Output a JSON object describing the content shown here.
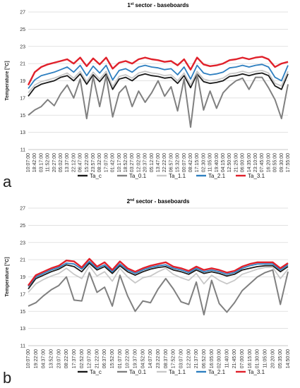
{
  "chart_data": [
    {
      "type": "line",
      "panel_letter": "a",
      "title_prefix": "1",
      "title_sup": "st",
      "title_rest": " sector - baseboards",
      "xlabel": "",
      "ylabel": "Temperature [°C]",
      "ylim": [
        11,
        27
      ],
      "yticks": [
        11,
        13,
        15,
        17,
        19,
        21,
        23,
        25,
        27
      ],
      "grid": true,
      "legend_position": "bottom",
      "x": [
        "10:07:00",
        "18:42:00",
        "03:17:00",
        "11:52:00",
        "20:27:00",
        "05:02:00",
        "13:37:00",
        "22:12:00",
        "06:47:00",
        "15:22:00",
        "23:57:00",
        "08:32:00",
        "17:07:00",
        "01:42:00",
        "10:17:00",
        "18:52:00",
        "03:27:00",
        "12:02:00",
        "20:37:00",
        "05:12:00",
        "13:47:00",
        "22:22:00",
        "06:57:00",
        "15:32:00",
        "00:07:00",
        "08:42:00",
        "17:15:00",
        "02:30:00",
        "11:05:00",
        "19:40:00",
        "04:15:00",
        "12:50:00",
        "21:25:00",
        "06:00:00",
        "14:35:00",
        "23:10:00",
        "07:45:00",
        "16:20:00",
        "00:55:00",
        "09:30:00",
        "17:55:00"
      ],
      "series": [
        {
          "name": "Ta_c",
          "color": "#1a1a1a",
          "values": [
            17.2,
            18.2,
            18.6,
            18.8,
            19.0,
            19.4,
            19.6,
            19.0,
            19.8,
            18.6,
            19.7,
            18.9,
            19.8,
            18.0,
            19.2,
            19.4,
            19.0,
            19.6,
            19.8,
            19.6,
            19.5,
            19.3,
            19.4,
            18.7,
            19.6,
            18.2,
            19.8,
            18.9,
            18.7,
            18.8,
            19.0,
            19.5,
            19.6,
            19.8,
            19.6,
            19.8,
            19.9,
            19.6,
            18.4,
            18.0,
            19.8
          ]
        },
        {
          "name": "Ta_0.1",
          "color": "#808080",
          "values": [
            15.0,
            15.6,
            16.0,
            16.8,
            16.1,
            17.5,
            18.5,
            17.0,
            19.2,
            14.6,
            19.5,
            16.0,
            19.6,
            14.8,
            17.6,
            18.4,
            16.0,
            17.8,
            16.5,
            17.6,
            19.0,
            17.2,
            18.3,
            15.5,
            19.2,
            13.6,
            19.8,
            15.6,
            17.8,
            15.8,
            17.6,
            18.4,
            19.0,
            19.3,
            18.0,
            19.4,
            19.4,
            18.2,
            16.8,
            14.6,
            18.6
          ]
        },
        {
          "name": "Ta_1.1",
          "color": "#c8c8c8",
          "values": [
            17.6,
            18.5,
            18.9,
            19.1,
            19.3,
            19.6,
            19.9,
            19.3,
            20.1,
            18.9,
            20.0,
            19.2,
            20.1,
            18.3,
            19.5,
            19.7,
            19.3,
            19.9,
            20.1,
            19.9,
            19.8,
            19.6,
            19.7,
            19.0,
            19.9,
            18.5,
            20.1,
            19.2,
            19.0,
            19.1,
            19.3,
            19.8,
            19.9,
            20.1,
            19.9,
            20.1,
            20.2,
            19.9,
            18.7,
            18.4,
            20.1
          ]
        },
        {
          "name": "Ta_2.1",
          "color": "#2e7fc0",
          "values": [
            18.1,
            19.1,
            19.6,
            19.8,
            20.0,
            20.3,
            20.6,
            20.0,
            20.8,
            19.6,
            20.7,
            19.9,
            20.8,
            19.1,
            20.2,
            20.4,
            20.0,
            20.6,
            20.8,
            20.6,
            20.5,
            20.3,
            20.4,
            19.7,
            20.6,
            19.2,
            20.8,
            19.9,
            19.7,
            19.8,
            20.0,
            20.5,
            20.6,
            20.8,
            20.6,
            20.8,
            20.9,
            20.6,
            19.4,
            19.0,
            20.8
          ]
        },
        {
          "name": "Ta_3.1",
          "color": "#e0202a",
          "values": [
            18.5,
            20.0,
            20.6,
            20.9,
            21.1,
            21.3,
            21.5,
            21.0,
            21.7,
            20.7,
            21.6,
            20.9,
            21.7,
            20.4,
            21.1,
            21.3,
            21.0,
            21.5,
            21.7,
            21.5,
            21.4,
            21.2,
            21.3,
            20.8,
            21.5,
            20.3,
            21.7,
            20.9,
            20.7,
            20.8,
            21.0,
            21.4,
            21.5,
            21.7,
            21.5,
            21.7,
            21.8,
            21.5,
            20.6,
            21.0,
            21.2
          ]
        }
      ]
    },
    {
      "type": "line",
      "panel_letter": "b",
      "title_prefix": "2",
      "title_sup": "nd",
      "title_rest": " sector - baseboards",
      "xlabel": "",
      "ylabel": "Temperature [°C]",
      "ylim": [
        11,
        27
      ],
      "yticks": [
        11,
        13,
        15,
        17,
        19,
        21,
        23,
        25,
        27
      ],
      "grid": true,
      "legend_position": "bottom",
      "x": [
        "10:07:00",
        "19:22:00",
        "04:37:00",
        "13:52:00",
        "23:07:00",
        "08:22:00",
        "17:37:00",
        "02:52:00",
        "12:07:00",
        "21:22:00",
        "06:37:00",
        "15:52:00",
        "01:07:00",
        "10:22:00",
        "19:37:00",
        "04:52:00",
        "14:07:00",
        "23:22:00",
        "08:37:00",
        "17:52:00",
        "03:07:00",
        "12:22:00",
        "21:37:00",
        "06:52:00",
        "16:05:00",
        "02:00:00",
        "11:40:00",
        "21:45:00",
        "07:00:00",
        "16:15:00",
        "01:30:00",
        "11:05:00",
        "20:20:00",
        "05:35:00",
        "14:50:00"
      ],
      "series": [
        {
          "name": "Ta_c",
          "color": "#1a1a1a",
          "values": [
            17.6,
            18.8,
            19.2,
            19.6,
            19.9,
            20.4,
            20.2,
            19.6,
            20.6,
            19.8,
            20.2,
            19.4,
            20.3,
            19.6,
            19.2,
            19.6,
            19.9,
            20.1,
            20.2,
            19.8,
            19.6,
            19.3,
            19.8,
            19.4,
            19.6,
            19.4,
            19.1,
            19.3,
            19.8,
            20.0,
            20.2,
            20.3,
            20.3,
            19.6,
            20.2
          ]
        },
        {
          "name": "Ta_0.1",
          "color": "#808080",
          "values": [
            15.6,
            16.0,
            16.8,
            17.5,
            18.0,
            19.0,
            16.3,
            16.2,
            19.5,
            17.2,
            17.8,
            15.6,
            19.2,
            16.8,
            15.0,
            16.2,
            16.0,
            17.6,
            18.8,
            17.6,
            16.1,
            15.8,
            18.4,
            14.6,
            18.6,
            15.9,
            14.9,
            16.0,
            17.4,
            18.2,
            19.0,
            19.5,
            19.8,
            15.8,
            19.6
          ]
        },
        {
          "name": "Ta_1.1",
          "color": "#c8c8c8",
          "values": [
            17.2,
            18.2,
            18.7,
            19.1,
            19.4,
            20.0,
            19.3,
            18.8,
            20.3,
            19.1,
            19.6,
            18.5,
            20.0,
            19.0,
            18.3,
            18.9,
            19.1,
            19.6,
            20.0,
            19.3,
            18.9,
            18.6,
            19.4,
            18.2,
            19.2,
            18.6,
            18.2,
            18.6,
            19.3,
            19.6,
            19.9,
            20.1,
            20.1,
            18.8,
            19.9
          ]
        },
        {
          "name": "Ta_2.1",
          "color": "#2e7fc0",
          "values": [
            17.9,
            19.0,
            19.4,
            19.8,
            20.1,
            20.6,
            20.5,
            19.9,
            20.8,
            20.0,
            20.4,
            19.6,
            20.5,
            19.8,
            19.4,
            19.8,
            20.1,
            20.3,
            20.4,
            20.0,
            19.8,
            19.5,
            20.0,
            19.6,
            19.8,
            19.6,
            19.3,
            19.5,
            20.0,
            20.3,
            20.5,
            20.5,
            20.5,
            19.8,
            20.4
          ]
        },
        {
          "name": "Ta_3.1",
          "color": "#e0202a",
          "values": [
            18.0,
            19.2,
            19.6,
            20.0,
            20.3,
            20.9,
            20.8,
            20.1,
            21.1,
            20.2,
            20.7,
            19.8,
            20.8,
            20.0,
            19.6,
            20.0,
            20.3,
            20.5,
            20.7,
            20.2,
            20.0,
            19.7,
            20.2,
            19.8,
            20.0,
            19.8,
            19.5,
            19.7,
            20.2,
            20.5,
            20.7,
            20.7,
            20.7,
            20.0,
            20.6
          ]
        }
      ]
    }
  ]
}
